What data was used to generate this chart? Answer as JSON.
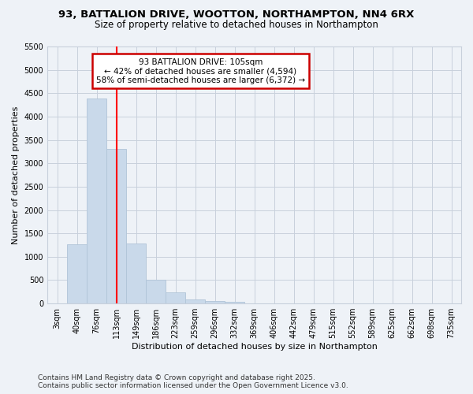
{
  "title": "93, BATTALION DRIVE, WOOTTON, NORTHAMPTON, NN4 6RX",
  "subtitle": "Size of property relative to detached houses in Northampton",
  "xlabel": "Distribution of detached houses by size in Northampton",
  "ylabel": "Number of detached properties",
  "categories": [
    "3sqm",
    "40sqm",
    "76sqm",
    "113sqm",
    "149sqm",
    "186sqm",
    "223sqm",
    "259sqm",
    "296sqm",
    "332sqm",
    "369sqm",
    "406sqm",
    "442sqm",
    "479sqm",
    "515sqm",
    "552sqm",
    "589sqm",
    "625sqm",
    "662sqm",
    "698sqm",
    "735sqm"
  ],
  "values": [
    0,
    1270,
    4380,
    3310,
    1280,
    500,
    230,
    80,
    55,
    40,
    0,
    0,
    0,
    0,
    0,
    0,
    0,
    0,
    0,
    0,
    0
  ],
  "bar_color": "#c9d9ea",
  "bar_edge_color": "#b0c4d8",
  "grid_color": "#c8d0dc",
  "bg_color": "#eef2f7",
  "red_line_x": 3.0,
  "annotation_line1": "93 BATTALION DRIVE: 105sqm",
  "annotation_line2": "← 42% of detached houses are smaller (4,594)",
  "annotation_line3": "58% of semi-detached houses are larger (6,372) →",
  "annotation_box_color": "#ffffff",
  "annotation_box_edge": "#cc0000",
  "ylim": [
    0,
    5500
  ],
  "yticks": [
    0,
    500,
    1000,
    1500,
    2000,
    2500,
    3000,
    3500,
    4000,
    4500,
    5000,
    5500
  ],
  "footnote": "Contains HM Land Registry data © Crown copyright and database right 2025.\nContains public sector information licensed under the Open Government Licence v3.0.",
  "title_fontsize": 9.5,
  "subtitle_fontsize": 8.5,
  "axis_label_fontsize": 8,
  "tick_fontsize": 7,
  "annotation_fontsize": 7.5,
  "footnote_fontsize": 6.5
}
